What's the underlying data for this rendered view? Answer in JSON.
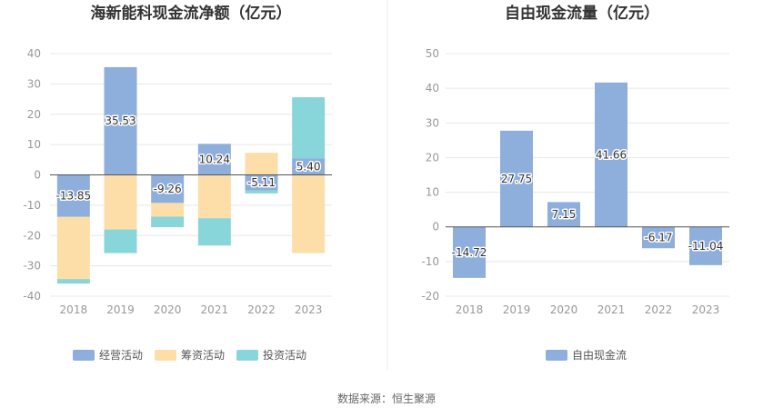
{
  "source_text": "数据来源：恒生聚源",
  "chart_data": [
    {
      "type": "bar",
      "stacked": true,
      "title": "海新能科现金流净额（亿元）",
      "categories": [
        "2018",
        "2019",
        "2020",
        "2021",
        "2022",
        "2023"
      ],
      "ylim": [
        -40,
        40
      ],
      "yticks": [
        40,
        30,
        20,
        10,
        0,
        -10,
        -20,
        -30,
        -40
      ],
      "grid": true,
      "legend_position": "bottom",
      "series": [
        {
          "name": "经营活动",
          "color": "#8eaedc",
          "values": [
            -13.85,
            35.53,
            -9.26,
            10.24,
            -5.11,
            5.4
          ]
        },
        {
          "name": "筹资活动",
          "color": "#fddea8",
          "values": [
            -20.5,
            -18,
            -4.5,
            -14.3,
            7.3,
            -25.8
          ]
        },
        {
          "name": "投资活动",
          "color": "#88d6d9",
          "values": [
            -1.5,
            -7.8,
            -3.5,
            -9,
            -1,
            20.2
          ]
        }
      ],
      "labels": [
        "-13.85",
        "35.53",
        "-9.26",
        "10.24",
        "-5.11",
        "5.40"
      ]
    },
    {
      "type": "bar",
      "title": "自由现金流量（亿元）",
      "categories": [
        "2018",
        "2019",
        "2020",
        "2021",
        "2022",
        "2023"
      ],
      "ylim": [
        -20,
        50
      ],
      "yticks": [
        50,
        40,
        30,
        20,
        10,
        0,
        -10,
        -20
      ],
      "grid": true,
      "legend_position": "bottom",
      "series": [
        {
          "name": "自由现金流",
          "color": "#8eaedc",
          "values": [
            -14.72,
            27.75,
            7.15,
            41.66,
            -6.17,
            -11.04
          ]
        }
      ],
      "labels": [
        "-14.72",
        "27.75",
        "7.15",
        "41.66",
        "-6.17",
        "-11.04"
      ]
    }
  ]
}
